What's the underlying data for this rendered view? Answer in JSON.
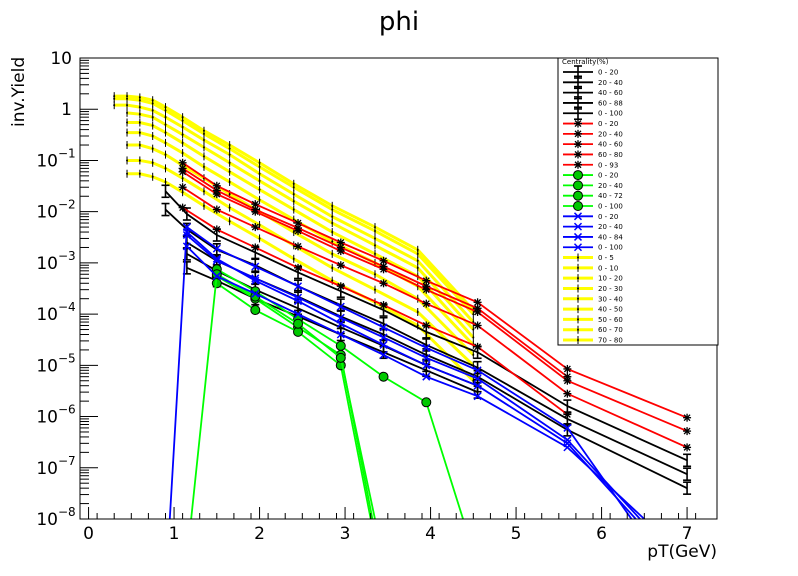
{
  "chart_data": {
    "type": "scatter",
    "title": "phi",
    "xlabel": "pT(GeV)",
    "ylabel": "inv.Yield",
    "xlim": [
      -0.1,
      7.35
    ],
    "ylim": [
      1e-08,
      10
    ],
    "y_scale": "log",
    "grid": false,
    "legend": {
      "title": "Centrality(%)",
      "placement": "top-right"
    },
    "x_ticks": [
      {
        "value": 0,
        "label": "0"
      },
      {
        "value": 1,
        "label": "1"
      },
      {
        "value": 2,
        "label": "2"
      },
      {
        "value": 3,
        "label": "3"
      },
      {
        "value": 4,
        "label": "4"
      },
      {
        "value": 5,
        "label": "5"
      },
      {
        "value": 6,
        "label": "6"
      },
      {
        "value": 7,
        "label": "7"
      }
    ],
    "y_ticks": [
      {
        "value": 10,
        "base": "10",
        "exp": ""
      },
      {
        "value": 1,
        "base": "1",
        "exp": ""
      },
      {
        "value": 0.1,
        "base": "10",
        "exp": "−1"
      },
      {
        "value": 0.01,
        "base": "10",
        "exp": "−2"
      },
      {
        "value": 0.001,
        "base": "10",
        "exp": "−3"
      },
      {
        "value": 0.0001,
        "base": "10",
        "exp": "−4"
      },
      {
        "value": 1e-05,
        "base": "10",
        "exp": "−5"
      },
      {
        "value": 1e-06,
        "base": "10",
        "exp": "−6"
      },
      {
        "value": 1e-07,
        "base": "10",
        "exp": "−7"
      },
      {
        "value": 1e-08,
        "base": "10",
        "exp": "−8"
      }
    ],
    "series": [
      {
        "name": "0 - 20",
        "color": "#000000",
        "marker": "bar",
        "x": [
          0.9,
          1.15,
          1.5,
          1.95,
          2.45,
          2.95,
          3.45,
          3.95,
          4.55,
          5.6,
          7.0
        ],
        "y": [
          0.025,
          0.009,
          0.0035,
          0.0016,
          0.00065,
          0.00028,
          0.00012,
          4.5e-05,
          1.8e-05,
          1.6e-06,
          1.4e-07
        ]
      },
      {
        "name": "20 - 40",
        "color": "#000000",
        "marker": "bar",
        "x": [
          0.9,
          1.15,
          1.5,
          1.95,
          2.45,
          2.95,
          3.45,
          3.95,
          4.55,
          5.6,
          7.0
        ],
        "y": [
          0.011,
          0.0045,
          0.0018,
          0.0009,
          0.00035,
          0.00015,
          6.5e-05,
          2.5e-05,
          9e-06,
          9e-07,
          7.5e-08
        ]
      },
      {
        "name": "40 - 60",
        "color": "#000000",
        "marker": "bar",
        "x": [
          1.15,
          1.5,
          1.95,
          2.45,
          2.95,
          3.45,
          3.95,
          4.55,
          5.6,
          7.0
        ],
        "y": [
          0.0025,
          0.0011,
          0.0005,
          0.00022,
          9e-05,
          4e-05,
          1.6e-05,
          6e-06,
          5.5e-07,
          4e-08
        ]
      },
      {
        "name": "60 - 88",
        "color": "#000000",
        "marker": "bar",
        "x": [
          1.15,
          1.5,
          1.95,
          2.45,
          2.95,
          3.45,
          3.95,
          4.55
        ],
        "y": [
          0.0008,
          0.00045,
          0.0002,
          9e-05,
          4e-05,
          1.8e-05,
          8e-06,
          3e-06
        ]
      },
      {
        "name": "0 - 100",
        "color": "#000000",
        "marker": "bar",
        "x": [
          1.15,
          1.5,
          1.95,
          2.45,
          2.95,
          3.45,
          3.95,
          4.55
        ],
        "y": [
          0.0015,
          0.0007,
          0.0003,
          0.00013,
          5.5e-05,
          2.4e-05,
          1e-05,
          4e-06
        ]
      },
      {
        "name": "0 - 20",
        "color": "#ff0000",
        "marker": "star",
        "x": [
          1.1,
          1.5,
          1.95,
          2.45,
          2.95,
          3.45,
          3.95,
          4.55,
          5.6,
          7.0
        ],
        "y": [
          0.09,
          0.032,
          0.014,
          0.006,
          0.0025,
          0.0011,
          0.00045,
          0.00017,
          8.5e-06,
          9.5e-07
        ]
      },
      {
        "name": "20 - 40",
        "color": "#ff0000",
        "marker": "star",
        "x": [
          1.1,
          1.5,
          1.95,
          2.45,
          2.95,
          3.45,
          3.95,
          4.55,
          5.6,
          7.0
        ],
        "y": [
          0.06,
          0.022,
          0.01,
          0.0042,
          0.0017,
          0.00075,
          0.0003,
          0.00011,
          5e-06,
          5.2e-07
        ]
      },
      {
        "name": "40 - 60",
        "color": "#ff0000",
        "marker": "star",
        "x": [
          1.1,
          1.5,
          1.95,
          2.45,
          2.95,
          3.45,
          3.95,
          4.55,
          5.6,
          7.0
        ],
        "y": [
          0.03,
          0.011,
          0.005,
          0.0021,
          0.0009,
          0.0004,
          0.00016,
          6e-05,
          2.8e-06,
          2.5e-07
        ]
      },
      {
        "name": "60 - 80",
        "color": "#ff0000",
        "marker": "star",
        "x": [
          1.1,
          1.5,
          1.95,
          2.45,
          2.95,
          3.45,
          3.95,
          4.55,
          5.6
        ],
        "y": [
          0.012,
          0.0045,
          0.002,
          0.0008,
          0.00035,
          0.00015,
          6e-05,
          2.3e-05,
          1.1e-06
        ]
      },
      {
        "name": "0 - 93",
        "color": "#ff0000",
        "marker": "star",
        "x": [
          1.1,
          1.5,
          1.95,
          2.45,
          2.95,
          3.45,
          3.95,
          4.55,
          5.6
        ],
        "y": [
          0.07,
          0.026,
          0.011,
          0.0048,
          0.002,
          0.00085,
          0.00035,
          0.00013,
          6e-06
        ]
      },
      {
        "name": "0 - 20",
        "color": "#00ff00",
        "marker": "circle",
        "x": [
          1.5,
          1.95,
          2.45,
          2.95,
          3.45,
          3.95,
          4.38
        ],
        "y": [
          0.00075,
          0.00028,
          8e-05,
          2.4e-05,
          6e-06,
          1.9e-06,
          1e-08
        ]
      },
      {
        "name": "20 - 40",
        "color": "#00ff00",
        "marker": "circle",
        "x": [
          1.5,
          1.95,
          2.45,
          2.95,
          3.32
        ],
        "y": [
          0.00055,
          0.0002,
          5.5e-05,
          1.6e-05,
          1e-08
        ]
      },
      {
        "name": "40 - 72",
        "color": "#00ff00",
        "marker": "circle",
        "x": [
          1.5,
          1.95,
          2.45,
          2.95,
          3.3
        ],
        "y": [
          0.0004,
          0.00012,
          4.5e-05,
          1e-05,
          1e-08
        ]
      },
      {
        "name": "0 - 100",
        "color": "#00ff00",
        "marker": "circle",
        "x": [
          1.2,
          1.5,
          1.95,
          2.45,
          2.95,
          3.35
        ],
        "y": [
          1e-08,
          0.0006,
          0.00022,
          6.5e-05,
          1.4e-05,
          1e-08
        ]
      },
      {
        "name": "0 - 20",
        "color": "#0000ff",
        "marker": "x",
        "x": [
          0.95,
          1.15,
          1.5,
          1.95,
          2.45,
          2.95,
          3.45,
          3.95,
          4.55,
          5.6,
          6.35
        ],
        "y": [
          1e-08,
          0.005,
          0.0019,
          0.00085,
          0.00035,
          0.00014,
          5.5e-05,
          2.2e-05,
          8e-06,
          6e-07,
          1e-08
        ]
      },
      {
        "name": "20 - 40",
        "color": "#0000ff",
        "marker": "x",
        "x": [
          1.15,
          1.5,
          1.95,
          2.45,
          2.95,
          3.45,
          3.95,
          4.55,
          5.6,
          6.45
        ],
        "y": [
          0.0035,
          0.0011,
          0.0005,
          0.00021,
          8.5e-05,
          3.5e-05,
          1.4e-05,
          5.5e-06,
          3.5e-07,
          1e-08
        ]
      },
      {
        "name": "40 - 84",
        "color": "#0000ff",
        "marker": "x",
        "x": [
          1.15,
          1.5,
          1.95,
          2.45,
          2.95,
          3.45,
          3.95,
          4.55,
          5.6,
          6.5
        ],
        "y": [
          0.0021,
          0.00055,
          0.00025,
          0.0001,
          4e-05,
          1.6e-05,
          6e-06,
          2.5e-06,
          2.5e-07,
          1e-08
        ]
      },
      {
        "name": "0 - 100",
        "color": "#0000ff",
        "marker": "x",
        "x": [
          1.15,
          1.5,
          1.95,
          2.45,
          2.95,
          3.45,
          3.95,
          4.55,
          5.6,
          6.4
        ],
        "y": [
          0.004,
          0.0012,
          0.00045,
          0.00018,
          6.5e-05,
          2.5e-05,
          1e-05,
          4e-06,
          3e-07,
          1e-08
        ]
      },
      {
        "name": "0 - 5",
        "color": "#ffff00",
        "marker": "dot",
        "x": [
          0.3,
          0.45,
          0.6,
          0.75,
          0.9,
          1.1,
          1.35,
          1.65,
          2.0,
          2.4,
          2.85,
          3.35,
          3.85,
          4.5
        ],
        "y": [
          1.8,
          1.8,
          1.7,
          1.5,
          1.1,
          0.7,
          0.38,
          0.2,
          0.09,
          0.035,
          0.013,
          0.005,
          0.0018,
          0.00012
        ]
      },
      {
        "name": "0 - 10",
        "color": "#ffff00",
        "marker": "dot",
        "x": [
          0.3,
          0.45,
          0.6,
          0.75,
          0.9,
          1.1,
          1.35,
          1.65,
          2.0,
          2.4,
          2.85,
          3.35,
          3.85,
          4.5
        ],
        "y": [
          1.6,
          1.6,
          1.5,
          1.3,
          0.95,
          0.6,
          0.33,
          0.17,
          0.075,
          0.03,
          0.011,
          0.0042,
          0.0015,
          0.0001
        ]
      },
      {
        "name": "10 - 20",
        "color": "#ffff00",
        "marker": "dot",
        "x": [
          0.3,
          0.45,
          0.6,
          0.75,
          0.9,
          1.1,
          1.35,
          1.65,
          2.0,
          2.4,
          2.85,
          3.35,
          3.85,
          4.5
        ],
        "y": [
          1.2,
          1.2,
          1.1,
          0.95,
          0.7,
          0.45,
          0.25,
          0.13,
          0.055,
          0.022,
          0.008,
          0.003,
          0.0011,
          7e-05
        ]
      },
      {
        "name": "20 - 30",
        "color": "#ffff00",
        "marker": "dot",
        "x": [
          0.45,
          0.6,
          0.75,
          0.9,
          1.1,
          1.35,
          1.65,
          2.0,
          2.4,
          2.85,
          3.35,
          3.85,
          4.5
        ],
        "y": [
          0.85,
          0.8,
          0.7,
          0.5,
          0.32,
          0.18,
          0.09,
          0.04,
          0.016,
          0.006,
          0.0022,
          0.0008,
          5e-05
        ]
      },
      {
        "name": "30 - 40",
        "color": "#ffff00",
        "marker": "dot",
        "x": [
          0.45,
          0.6,
          0.75,
          0.9,
          1.1,
          1.35,
          1.65,
          2.0,
          2.4,
          2.85,
          3.35,
          3.85,
          4.5
        ],
        "y": [
          0.55,
          0.55,
          0.48,
          0.35,
          0.22,
          0.12,
          0.06,
          0.027,
          0.011,
          0.004,
          0.0015,
          0.00055,
          3.5e-05
        ]
      },
      {
        "name": "40 - 50",
        "color": "#ffff00",
        "marker": "dot",
        "x": [
          0.45,
          0.6,
          0.75,
          0.9,
          1.1,
          1.35,
          1.65,
          2.0,
          2.4,
          2.85,
          3.35,
          3.85,
          4.5
        ],
        "y": [
          0.35,
          0.35,
          0.3,
          0.22,
          0.14,
          0.075,
          0.038,
          0.017,
          0.007,
          0.0026,
          0.001,
          0.00035,
          2.5e-05
        ]
      },
      {
        "name": "50 - 60",
        "color": "#ffff00",
        "marker": "dot",
        "x": [
          0.45,
          0.6,
          0.75,
          0.9,
          1.1,
          1.35,
          1.65,
          2.0,
          2.4,
          2.85,
          3.35,
          3.85,
          4.5
        ],
        "y": [
          0.2,
          0.2,
          0.17,
          0.13,
          0.08,
          0.045,
          0.022,
          0.01,
          0.004,
          0.0015,
          0.0006,
          0.0002,
          1.6e-05
        ]
      },
      {
        "name": "60 - 70",
        "color": "#ffff00",
        "marker": "dot",
        "x": [
          0.45,
          0.6,
          0.75,
          0.9,
          1.1,
          1.35,
          1.65,
          2.0,
          2.4,
          2.85,
          3.35,
          3.85,
          4.5
        ],
        "y": [
          0.1,
          0.1,
          0.09,
          0.07,
          0.045,
          0.025,
          0.012,
          0.0055,
          0.0022,
          0.0008,
          0.0003,
          0.00011,
          1e-05
        ]
      },
      {
        "name": "70 - 80",
        "color": "#ffff00",
        "marker": "dot",
        "x": [
          0.45,
          0.6,
          0.75,
          0.9,
          1.1,
          1.35,
          1.65,
          2.0,
          2.4,
          2.85,
          3.35,
          3.85,
          4.5
        ],
        "y": [
          0.055,
          0.055,
          0.048,
          0.038,
          0.024,
          0.013,
          0.0065,
          0.003,
          0.0012,
          0.00045,
          0.00017,
          6e-05,
          5e-06
        ]
      }
    ]
  }
}
